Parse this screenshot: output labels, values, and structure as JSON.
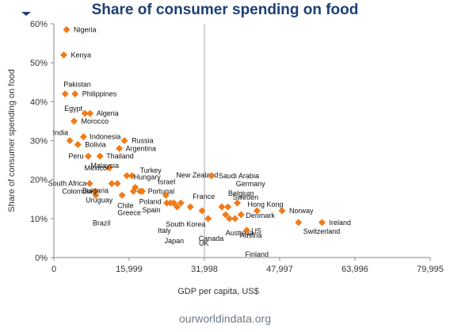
{
  "chart_data": {
    "type": "scatter",
    "title": "Share of consumer spending on food",
    "xlabel": "GDP per capita, US$",
    "ylabel": "Share of consumer spending on food",
    "xlim": [
      0,
      79995
    ],
    "ylim": [
      0,
      60
    ],
    "x_ticks": [
      0,
      15999,
      31998,
      47997,
      63996,
      79995
    ],
    "x_tick_labels": [
      "0",
      "15,999",
      "31,998",
      "47,997",
      "63,996",
      "79,995"
    ],
    "y_ticks": [
      0,
      10,
      20,
      30,
      40,
      50,
      60
    ],
    "y_tick_labels": [
      "0%",
      "10%",
      "20%",
      "30%",
      "40%",
      "50%",
      "60%"
    ],
    "grid": false,
    "marker_color": "#f07b1a",
    "points": [
      {
        "name": "Nigeria",
        "x": 2700,
        "y": 58.5
      },
      {
        "name": "Kenya",
        "x": 2100,
        "y": 52
      },
      {
        "name": "Pakistan",
        "x": 2400,
        "y": 42
      },
      {
        "name": "Philippines",
        "x": 4500,
        "y": 42
      },
      {
        "name": "Egypt",
        "x": 6600,
        "y": 37
      },
      {
        "name": "Algeria",
        "x": 7700,
        "y": 37
      },
      {
        "name": "Morocco",
        "x": 4300,
        "y": 35
      },
      {
        "name": "India",
        "x": 3400,
        "y": 30
      },
      {
        "name": "Indonesia",
        "x": 6300,
        "y": 31
      },
      {
        "name": "Bolivia",
        "x": 5100,
        "y": 29
      },
      {
        "name": "Russia",
        "x": 15000,
        "y": 30
      },
      {
        "name": "Argentina",
        "x": 13900,
        "y": 28
      },
      {
        "name": "Thailand",
        "x": 9800,
        "y": 26
      },
      {
        "name": "Peru",
        "x": 7300,
        "y": 26
      },
      {
        "name": "Mexico",
        "x": 11800,
        "y": 23
      },
      {
        "name": "Malaysia",
        "x": 15500,
        "y": 21
      },
      {
        "name": "Turkey",
        "x": 16600,
        "y": 21
      },
      {
        "name": "South Africa",
        "x": 7600,
        "y": 19
      },
      {
        "name": "Colombia",
        "x": 8800,
        "y": 17
      },
      {
        "name": "Brazil",
        "x": 8900,
        "y": 16
      },
      {
        "name": "Bulgaria",
        "x": 12300,
        "y": 19
      },
      {
        "name": "Uruguay",
        "x": 13500,
        "y": 19
      },
      {
        "name": "Chile",
        "x": 14500,
        "y": 16
      },
      {
        "name": "Hungary",
        "x": 17300,
        "y": 18
      },
      {
        "name": "Greece",
        "x": 16900,
        "y": 17
      },
      {
        "name": "Poland",
        "x": 18800,
        "y": 17
      },
      {
        "name": "Portugal",
        "x": 18300,
        "y": 17
      },
      {
        "name": "Israel",
        "x": 23800,
        "y": 16
      },
      {
        "name": "Spain",
        "x": 24000,
        "y": 14
      },
      {
        "name": "Italy",
        "x": 24800,
        "y": 14
      },
      {
        "name": "South Korea",
        "x": 25500,
        "y": 14
      },
      {
        "name": "New Zealand",
        "x": 27000,
        "y": 14
      },
      {
        "name": "Japan",
        "x": 26200,
        "y": 13
      },
      {
        "name": "France",
        "x": 29000,
        "y": 13
      },
      {
        "name": "UK",
        "x": 31500,
        "y": 12
      },
      {
        "name": "Canada",
        "x": 32800,
        "y": 10
      },
      {
        "name": "Saudi Arabia",
        "x": 33500,
        "y": 21
      },
      {
        "name": "Belgium",
        "x": 35700,
        "y": 13
      },
      {
        "name": "Germany",
        "x": 37000,
        "y": 13
      },
      {
        "name": "Sweden",
        "x": 39000,
        "y": 14
      },
      {
        "name": "Australia",
        "x": 36500,
        "y": 11
      },
      {
        "name": "Austria",
        "x": 38500,
        "y": 10
      },
      {
        "name": "Denmark",
        "x": 39800,
        "y": 11
      },
      {
        "name": "Finland",
        "x": 37300,
        "y": 10
      },
      {
        "name": "US",
        "x": 41000,
        "y": 7
      },
      {
        "name": "Hong Kong",
        "x": 43200,
        "y": 12
      },
      {
        "name": "Norway",
        "x": 48500,
        "y": 12
      },
      {
        "name": "Switzerland",
        "x": 52000,
        "y": 9
      },
      {
        "name": "Ireland",
        "x": 57000,
        "y": 9
      }
    ]
  },
  "source": "ourworldindata.org"
}
